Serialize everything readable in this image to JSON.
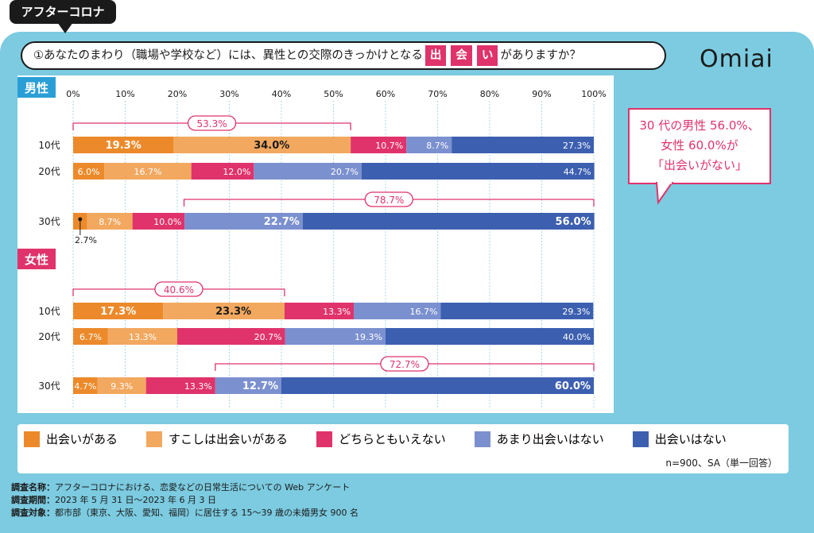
{
  "tag": "アフターコロナ",
  "question": {
    "prefix": "①あなたのまわり（職場や学校など）には、異性との交際のきっかけとなる",
    "highlight": [
      "出",
      "会",
      "い"
    ],
    "suffix": "がありますか？"
  },
  "logo": "Omiai",
  "callout": [
    "30 代の男性 56.0%、",
    "女性 60.0%が",
    "「出会いがない」"
  ],
  "legend_note": "n=900、SA（単一回答）",
  "footer": [
    {
      "label": "調査名称：",
      "text": "アフターコロナにおける、恋愛などの日常生活についての Web アンケート"
    },
    {
      "label": "調査期間：",
      "text": "2023 年 5 月 31 日〜2023 年 6 月 3 日"
    },
    {
      "label": "調査対象：",
      "text": "都市部（東京、大阪、愛知、福岡）に居住する 15〜39 歳の未婚男女 900 名"
    }
  ],
  "colors": {
    "aru": "#ec8a2b",
    "sukoshi": "#f2a85f",
    "dochira": "#e0336b",
    "amari": "#7b90cf",
    "nai": "#3c5fb0",
    "pink": "#e0336b",
    "blue_label": "#2a9fd6"
  },
  "chart_data": {
    "type": "bar",
    "stacked": true,
    "orientation": "horizontal",
    "xlim": [
      0,
      100
    ],
    "ticks": [
      "0%",
      "10%",
      "20%",
      "30%",
      "40%",
      "50%",
      "60%",
      "70%",
      "80%",
      "90%",
      "100%"
    ],
    "series": [
      {
        "name": "出会いがある",
        "key": "aru"
      },
      {
        "name": "すこしは出会いがある",
        "key": "sukoshi"
      },
      {
        "name": "どちらともいえない",
        "key": "dochira"
      },
      {
        "name": "あまり出会いはない",
        "key": "amari"
      },
      {
        "name": "出会いはない",
        "key": "nai"
      }
    ],
    "groups": [
      {
        "name": "男性",
        "rows": [
          {
            "label": "10代",
            "values": [
              19.3,
              34.0,
              10.7,
              8.7,
              27.3
            ],
            "bold": [
              true,
              true,
              false,
              false,
              false
            ],
            "bracket": {
              "from": 0,
              "to": 53.3,
              "label": "53.3%"
            }
          },
          {
            "label": "20代",
            "values": [
              6.0,
              16.7,
              12.0,
              20.7,
              44.7
            ],
            "bold": [
              false,
              false,
              false,
              false,
              false
            ]
          },
          {
            "label": "30代",
            "values": [
              2.7,
              8.7,
              10.0,
              22.7,
              56.0
            ],
            "bold": [
              false,
              false,
              false,
              true,
              true
            ],
            "bracket": {
              "from": 21.3,
              "to": 100,
              "label": "78.7%"
            },
            "outside_first": "2.7%"
          }
        ]
      },
      {
        "name": "女性",
        "rows": [
          {
            "label": "10代",
            "values": [
              17.3,
              23.3,
              13.3,
              16.7,
              29.3
            ],
            "bold": [
              true,
              true,
              false,
              false,
              false
            ],
            "bracket": {
              "from": 0,
              "to": 40.6,
              "label": "40.6%"
            }
          },
          {
            "label": "20代",
            "values": [
              6.7,
              13.3,
              20.7,
              19.3,
              40.0
            ],
            "bold": [
              false,
              false,
              false,
              false,
              false
            ]
          },
          {
            "label": "30代",
            "values": [
              4.7,
              9.3,
              13.3,
              12.7,
              60.0
            ],
            "bold": [
              false,
              false,
              false,
              true,
              true
            ],
            "bracket": {
              "from": 27.3,
              "to": 100,
              "label": "72.7%"
            }
          }
        ]
      }
    ]
  }
}
